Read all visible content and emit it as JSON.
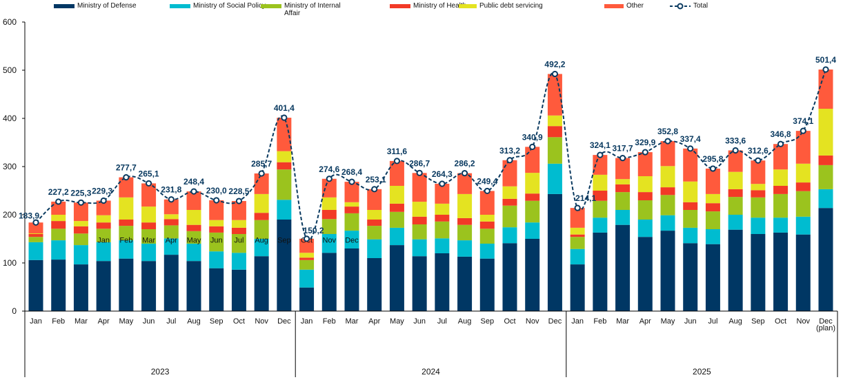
{
  "chart_data": {
    "type": "bar",
    "stacked": true,
    "title": "",
    "xlabel": "",
    "ylabel": "",
    "ylim": [
      0,
      600
    ],
    "yticks": [
      0,
      100,
      200,
      300,
      400,
      500,
      600
    ],
    "grid": false,
    "legend_position": "top",
    "decimal_separator": ",",
    "years": [
      {
        "label": "2023",
        "months": 12
      },
      {
        "label": "2024",
        "months": 12
      },
      {
        "label": "2025",
        "months": 12
      }
    ],
    "categories": [
      "Jan",
      "Feb",
      "Mar",
      "Apr",
      "May",
      "Jun",
      "Jul",
      "Aug",
      "Sep",
      "Oct",
      "Nov",
      "Dec",
      "Jan",
      "Feb",
      "Mar",
      "Apr",
      "May",
      "Jun",
      "Jul",
      "Aug",
      "Sep",
      "Oct",
      "Nov",
      "Dec",
      "Jan",
      "Feb",
      "Mar",
      "Apr",
      "May",
      "Jun",
      "Jul",
      "Aug",
      "Sep",
      "Oct",
      "Nov",
      "Dec (plan)"
    ],
    "stray_month_labels": [
      "Jan",
      "Feb",
      "Mar",
      "Apr",
      "May",
      "Jun",
      "Jul",
      "Aug",
      "Sep",
      "Oct",
      "Nov",
      "Dec"
    ],
    "stray_labels_start_index": 3,
    "stray_labels_value_level": 148,
    "series": [
      {
        "name": "Ministry of Defense",
        "color": "#003764",
        "values": [
          106,
          107,
          97,
          104,
          109,
          104,
          117,
          104,
          89,
          86,
          114,
          190,
          49,
          121,
          130,
          110,
          137,
          114,
          120,
          113,
          109,
          141,
          150,
          243,
          97,
          163,
          179,
          154,
          167,
          141,
          139,
          169,
          160,
          163,
          159,
          214
        ]
      },
      {
        "name": "Ministry of Social Policy",
        "color": "#00BCD0",
        "values": [
          37,
          40,
          40,
          39,
          38,
          36,
          34,
          36,
          35,
          35,
          36,
          41,
          37,
          39,
          37,
          39,
          36,
          35,
          31,
          34,
          31,
          33,
          34,
          63,
          32,
          31,
          31,
          36,
          32,
          32,
          31,
          31,
          34,
          31,
          37,
          39
        ]
      },
      {
        "name": "Ministry of Internal Affair",
        "color": "#9BC31E",
        "values": [
          11,
          24,
          24,
          28,
          30,
          30,
          27,
          26,
          39,
          39,
          39,
          63,
          20,
          31,
          36,
          28,
          33,
          31,
          35,
          32,
          31,
          45,
          45,
          55,
          25,
          35,
          37,
          40,
          42,
          37,
          37,
          37,
          42,
          49,
          53,
          50
        ]
      },
      {
        "name": "Ministry of Health",
        "color": "#F23A27",
        "values": [
          6,
          16,
          15,
          13,
          13,
          14,
          13,
          13,
          13,
          13,
          15,
          15,
          5,
          19,
          14,
          13,
          17,
          16,
          14,
          14,
          15,
          14,
          15,
          23,
          5,
          21,
          16,
          17,
          16,
          16,
          17,
          16,
          15,
          17,
          18,
          20
        ]
      },
      {
        "name": "Public debt servicing",
        "color": "#E4E321",
        "values": [
          1.4,
          13,
          11,
          15,
          46,
          33,
          10,
          31,
          13,
          16,
          39,
          23,
          10,
          26,
          9,
          20,
          37,
          31,
          23,
          50,
          14,
          26,
          43,
          22,
          14,
          33,
          11,
          33,
          44,
          43,
          19,
          36,
          13,
          34,
          39,
          97
        ]
      },
      {
        "name": "Other",
        "color": "#FF5A3C",
        "values": [
          22.5,
          27.2,
          38.3,
          30.3,
          41.7,
          48.1,
          30.8,
          38.4,
          41,
          39.5,
          42.7,
          69.4,
          29.2,
          38.6,
          42.4,
          43.1,
          51.6,
          59.7,
          41.3,
          43.2,
          49.4,
          54.2,
          53.9,
          86.2,
          41.1,
          41.1,
          43.7,
          49.9,
          51.8,
          68.4,
          52.8,
          44.6,
          48.6,
          52.8,
          68.1,
          81.4
        ]
      }
    ],
    "total": {
      "name": "Total",
      "color": "#0A3A60",
      "values": [
        183.9,
        227.2,
        225.3,
        229.3,
        277.7,
        265.1,
        231.8,
        248.4,
        230.0,
        228.5,
        285.7,
        401.4,
        150.2,
        274.6,
        268.4,
        253.1,
        311.6,
        286.7,
        264.3,
        286.2,
        249.4,
        313.2,
        340.9,
        492.2,
        214.1,
        324.1,
        317.7,
        329.9,
        352.8,
        337.4,
        295.8,
        333.6,
        312.6,
        346.8,
        374.1,
        501.4
      ],
      "labels": [
        "183,9",
        "227,2",
        "225,3",
        "229,3",
        "277,7",
        "265,1",
        "231,8",
        "248,4",
        "230,0",
        "228,5",
        "285,7",
        "401,4",
        "150,2",
        "274,6",
        "268,4",
        "253,1",
        "311,6",
        "286,7",
        "264,3",
        "286,2",
        "249,4",
        "313,2",
        "340,9",
        "492,2",
        "214,1",
        "324,1",
        "317,7",
        "329,9",
        "352,8",
        "337,4",
        "295,8",
        "333,6",
        "312,6",
        "346,8",
        "374,1",
        "501,4"
      ]
    }
  },
  "legend": [
    {
      "label": "Ministry of Defense",
      "color": "#003764",
      "kind": "bar"
    },
    {
      "label": "Ministry of Social Policy",
      "color": "#00BCD0",
      "kind": "bar"
    },
    {
      "label": "Ministry of Internal Affair",
      "color": "#9BC31E",
      "kind": "bar"
    },
    {
      "label": "Ministry of Health",
      "color": "#F23A27",
      "kind": "bar"
    },
    {
      "label": "Public debt servicing",
      "color": "#E4E321",
      "kind": "bar"
    },
    {
      "label": "Other",
      "color": "#FF5A3C",
      "kind": "bar"
    },
    {
      "label": "Total",
      "color": "#0A3A60",
      "kind": "line"
    }
  ]
}
